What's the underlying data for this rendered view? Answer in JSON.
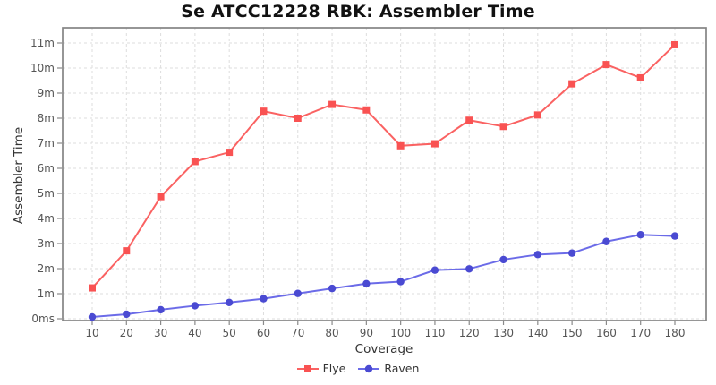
{
  "chart_data": {
    "type": "line",
    "title": "Se ATCC12228 RBK: Assembler Time",
    "xlabel": "Coverage",
    "ylabel": "Assembler Time",
    "units": "minutes",
    "grid": true,
    "legend_position": "bottom",
    "x": [
      10,
      20,
      30,
      40,
      50,
      60,
      70,
      80,
      90,
      100,
      110,
      120,
      130,
      140,
      150,
      160,
      170,
      180
    ],
    "x_tick_labels": [
      "10",
      "20",
      "30",
      "40",
      "50",
      "60",
      "70",
      "80",
      "90",
      "100",
      "110",
      "120",
      "130",
      "140",
      "150",
      "160",
      "170",
      "180"
    ],
    "y_ticks": [
      0,
      1,
      2,
      3,
      4,
      5,
      6,
      7,
      8,
      9,
      10,
      11
    ],
    "y_tick_labels": [
      "0ms",
      "1m",
      "2m",
      "3m",
      "4m",
      "5m",
      "6m",
      "7m",
      "8m",
      "9m",
      "10m",
      "11m"
    ],
    "ylim_minutes": [
      0,
      11.6
    ],
    "series": [
      {
        "name": "Flye",
        "marker": "square",
        "color": "#fa6262",
        "marker_color": "#f95252",
        "values": [
          1.23,
          2.71,
          4.87,
          6.27,
          6.64,
          8.28,
          8.0,
          8.55,
          8.33,
          6.9,
          6.98,
          7.92,
          7.67,
          8.13,
          9.37,
          10.14,
          9.61,
          10.93
        ]
      },
      {
        "name": "Raven",
        "marker": "circle",
        "color": "#6b6be8",
        "marker_color": "#4a4ad2",
        "values": [
          0.07,
          0.18,
          0.36,
          0.52,
          0.65,
          0.8,
          1.01,
          1.21,
          1.4,
          1.48,
          1.94,
          1.99,
          2.36,
          2.56,
          2.62,
          3.08,
          3.35,
          3.3
        ]
      }
    ]
  }
}
